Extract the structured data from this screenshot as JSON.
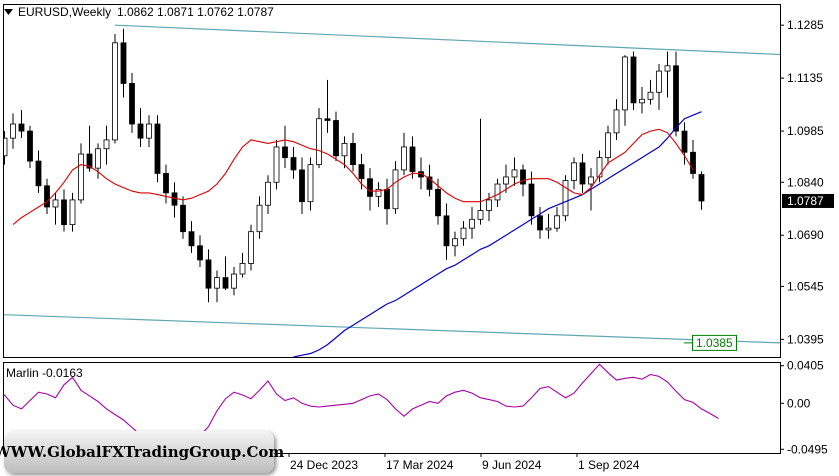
{
  "chart_data": [
    {
      "type": "candlestick",
      "title": "EURUSD,Weekly",
      "ohlc_header": [
        "1.0862",
        "1.0871",
        "1.0762",
        "1.0787"
      ],
      "y_ticks": [
        "1.1285",
        "1.1135",
        "1.0985",
        "1.0840",
        "1.0690",
        "1.0545",
        "1.0395"
      ],
      "ylim": [
        1.0345,
        1.1345
      ],
      "x_ticks": [
        "24 Dec 2023",
        "17 Mar 2024",
        "9 Jun 2024",
        "1 Sep 2024"
      ],
      "current_price": "1.0787",
      "level_label": "1.0385",
      "colors": {
        "up": "#ffffff",
        "down": "#000000",
        "ma_fast": "#dd0000",
        "ma_slow": "#0000cc",
        "channel": "#5fa8b4",
        "oscillator": "#aa00aa",
        "level_box": "#008000"
      },
      "candles": [
        [
          1.0915,
          1.0985,
          1.089,
          1.0965
        ],
        [
          1.0965,
          1.1035,
          1.0935,
          1.1005
        ],
        [
          1.1005,
          1.1045,
          1.0965,
          1.0985
        ],
        [
          1.0985,
          1.1,
          1.088,
          1.09
        ],
        [
          1.09,
          1.093,
          1.081,
          1.083
        ],
        [
          1.083,
          1.085,
          1.075,
          1.077
        ],
        [
          1.077,
          1.081,
          1.072,
          1.079
        ],
        [
          1.079,
          1.082,
          1.07,
          1.072
        ],
        [
          1.072,
          1.081,
          1.07,
          1.079
        ],
        [
          1.079,
          1.095,
          1.078,
          1.092
        ],
        [
          1.092,
          1.1,
          1.087,
          1.088
        ],
        [
          1.088,
          1.095,
          1.085,
          1.0935
        ],
        [
          1.0935,
          1.1,
          1.089,
          1.096
        ],
        [
          1.096,
          1.126,
          1.095,
          1.1235
        ],
        [
          1.1235,
          1.1275,
          1.108,
          1.112
        ],
        [
          1.112,
          1.115,
          1.098,
          1.1005
        ],
        [
          1.1005,
          1.105,
          1.094,
          1.0965
        ],
        [
          1.0965,
          1.103,
          1.094,
          1.1005
        ],
        [
          1.1005,
          1.103,
          1.084,
          1.0865
        ],
        [
          1.0865,
          1.089,
          1.078,
          1.081
        ],
        [
          1.081,
          1.084,
          1.074,
          1.0775
        ],
        [
          1.0775,
          1.08,
          1.068,
          1.07
        ],
        [
          1.07,
          1.073,
          1.064,
          1.066
        ],
        [
          1.066,
          1.069,
          1.06,
          1.062
        ],
        [
          1.062,
          1.065,
          1.05,
          1.054
        ],
        [
          1.054,
          1.059,
          1.05,
          1.057
        ],
        [
          1.057,
          1.063,
          1.0535,
          1.054
        ],
        [
          1.054,
          1.06,
          1.052,
          1.058
        ],
        [
          1.058,
          1.064,
          1.057,
          1.061
        ],
        [
          1.061,
          1.072,
          1.059,
          1.07
        ],
        [
          1.07,
          1.08,
          1.068,
          1.0775
        ],
        [
          1.0775,
          1.086,
          1.075,
          1.084
        ],
        [
          1.084,
          1.096,
          1.082,
          1.094
        ],
        [
          1.094,
          1.1,
          1.088,
          1.091
        ],
        [
          1.091,
          1.094,
          1.085,
          1.0875
        ],
        [
          1.0875,
          1.091,
          1.075,
          1.0785
        ],
        [
          1.0785,
          1.091,
          1.076,
          1.089
        ],
        [
          1.089,
          1.105,
          1.088,
          1.102
        ],
        [
          1.102,
          1.113,
          1.098,
          1.1015
        ],
        [
          1.1015,
          1.104,
          1.09,
          1.0915
        ],
        [
          1.0915,
          1.097,
          1.088,
          1.095
        ],
        [
          1.095,
          1.098,
          1.087,
          1.089
        ],
        [
          1.089,
          1.092,
          1.082,
          1.085
        ],
        [
          1.085,
          1.088,
          1.076,
          1.08
        ],
        [
          1.08,
          1.084,
          1.077,
          1.082
        ],
        [
          1.082,
          1.085,
          1.072,
          1.0765
        ],
        [
          1.0765,
          1.09,
          1.075,
          1.0875
        ],
        [
          1.0875,
          1.098,
          1.086,
          1.094
        ],
        [
          1.094,
          1.097,
          1.085,
          1.087
        ],
        [
          1.087,
          1.091,
          1.082,
          1.0855
        ],
        [
          1.0855,
          1.089,
          1.08,
          1.082
        ],
        [
          1.082,
          1.085,
          1.072,
          1.0745
        ],
        [
          1.0745,
          1.078,
          1.062,
          1.066
        ],
        [
          1.066,
          1.07,
          1.063,
          1.068
        ],
        [
          1.068,
          1.073,
          1.066,
          1.071
        ],
        [
          1.071,
          1.077,
          1.068,
          1.0735
        ],
        [
          1.0735,
          1.102,
          1.072,
          1.076
        ],
        [
          1.076,
          1.081,
          1.073,
          1.079
        ],
        [
          1.079,
          1.085,
          1.077,
          1.0835
        ],
        [
          1.0835,
          1.089,
          1.081,
          1.0855
        ],
        [
          1.0855,
          1.091,
          1.083,
          1.0875
        ],
        [
          1.0875,
          1.089,
          1.08,
          1.0835
        ],
        [
          1.0835,
          1.087,
          1.072,
          1.0745
        ],
        [
          1.0745,
          1.077,
          1.068,
          1.0705
        ],
        [
          1.0705,
          1.075,
          1.068,
          1.071
        ],
        [
          1.071,
          1.077,
          1.07,
          1.0745
        ],
        [
          1.0745,
          1.086,
          1.073,
          1.0845
        ],
        [
          1.0845,
          1.091,
          1.082,
          1.0895
        ],
        [
          1.0895,
          1.092,
          1.081,
          1.0835
        ],
        [
          1.0835,
          1.088,
          1.076,
          1.0855
        ],
        [
          1.0855,
          1.093,
          1.084,
          1.091
        ],
        [
          1.091,
          1.1,
          1.089,
          1.098
        ],
        [
          1.098,
          1.1075,
          1.096,
          1.1045
        ],
        [
          1.1045,
          1.12,
          1.1,
          1.1195
        ],
        [
          1.1195,
          1.121,
          1.1045,
          1.1065
        ],
        [
          1.1065,
          1.111,
          1.1035,
          1.1075
        ],
        [
          1.1075,
          1.113,
          1.106,
          1.1095
        ],
        [
          1.1095,
          1.1175,
          1.1045,
          1.1155
        ],
        [
          1.1155,
          1.121,
          1.108,
          1.117
        ],
        [
          1.117,
          1.121,
          1.097,
          1.0985
        ],
        [
          1.0985,
          1.101,
          1.089,
          1.0925
        ],
        [
          1.0925,
          1.096,
          1.085,
          1.0865
        ],
        [
          1.0862,
          1.0871,
          1.0762,
          1.0787
        ]
      ],
      "ma_fast": [
        1.072,
        1.074,
        1.0755,
        1.077,
        1.0785,
        1.081,
        1.084,
        1.0875,
        1.089,
        1.0885,
        1.087,
        1.085,
        1.0835,
        1.0825,
        1.0815,
        1.081,
        1.081,
        1.0805,
        1.08,
        1.0795,
        1.079,
        1.0795,
        1.0805,
        1.0815,
        1.0835,
        1.0865,
        1.0905,
        1.094,
        1.096,
        1.0955,
        1.095,
        1.0955,
        1.096,
        1.0955,
        1.0945,
        1.0935,
        1.093,
        1.092,
        1.0905,
        1.089,
        1.0865,
        1.0835,
        1.0815,
        1.0815,
        1.082,
        1.084,
        1.0855,
        1.0865,
        1.0865,
        1.085,
        1.083,
        1.081,
        1.0795,
        1.0785,
        1.0785,
        1.0785,
        1.0795,
        1.0805,
        1.082,
        1.0835,
        1.0845,
        1.085,
        1.085,
        1.085,
        1.084,
        1.0825,
        1.081,
        1.0805,
        1.0825,
        1.086,
        1.0895,
        1.091,
        1.0925,
        1.095,
        1.0975,
        1.0985,
        1.099,
        1.098,
        1.095,
        1.0915,
        1.0875
      ],
      "ma_fast_start": 1,
      "ma_slow": [
        1.0345,
        1.035,
        1.0355,
        1.0365,
        1.038,
        1.04,
        1.042,
        1.0435,
        1.045,
        1.0465,
        1.048,
        1.0495,
        1.0505,
        1.052,
        1.0535,
        1.055,
        1.0565,
        1.058,
        1.0595,
        1.0605,
        1.062,
        1.0635,
        1.065,
        1.066,
        1.0675,
        1.069,
        1.0705,
        1.072,
        1.0735,
        1.075,
        1.0765,
        1.0775,
        1.0785,
        1.0795,
        1.0805,
        1.082,
        1.0835,
        1.085,
        1.0865,
        1.088,
        1.0895,
        1.091,
        1.0925,
        1.094,
        1.0965,
        1.0995,
        1.102,
        1.103,
        1.104
      ],
      "ma_slow_start": 34,
      "channel_upper": [
        [
          13,
          1.1285
        ],
        [
          84,
          1.1202
        ]
      ],
      "channel_lower": [
        [
          0,
          1.0465
        ],
        [
          84,
          1.0385
        ]
      ]
    },
    {
      "type": "line",
      "title": "Marlin -0.0163",
      "y_ticks": [
        "0.0405",
        "0.00",
        "-0.0495"
      ],
      "ylim": [
        -0.0535,
        0.0445
      ],
      "values": [
        0.021,
        0.018,
        0.012,
        0.006,
        0.002,
        0.003,
        0.009,
        -0.002,
        -0.006,
        0.003,
        0.012,
        0.01,
        0.006,
        0.02,
        0.028,
        0.014,
        0.008,
        0.002,
        -0.006,
        -0.012,
        -0.018,
        -0.026,
        -0.034,
        -0.04,
        -0.046,
        -0.052,
        -0.049,
        -0.043,
        -0.04,
        -0.035,
        -0.025,
        -0.008,
        0.005,
        0.012,
        0.009,
        0.005,
        0.014,
        0.024,
        0.01,
        0.003,
        0.006,
        0.0,
        -0.003,
        -0.004,
        -0.003,
        -0.002,
        -0.001,
        0.0,
        0.004,
        0.008,
        0.01,
        0.004,
        -0.006,
        -0.014,
        -0.006,
        -0.002,
        0.002,
        0.0,
        0.008,
        0.012,
        0.014,
        0.011,
        0.006,
        0.004,
        0.002,
        -0.003,
        -0.004,
        -0.003,
        0.006,
        0.016,
        0.018,
        0.012,
        0.006,
        0.011,
        0.022,
        0.032,
        0.042,
        0.033,
        0.025,
        0.027,
        0.028,
        0.026,
        0.031,
        0.029,
        0.023,
        0.013,
        0.004,
        0.001,
        -0.006,
        -0.011,
        -0.0163
      ],
      "start": -6
    }
  ],
  "watermark": "WWW.GlobalFXTradingGroup.Com"
}
